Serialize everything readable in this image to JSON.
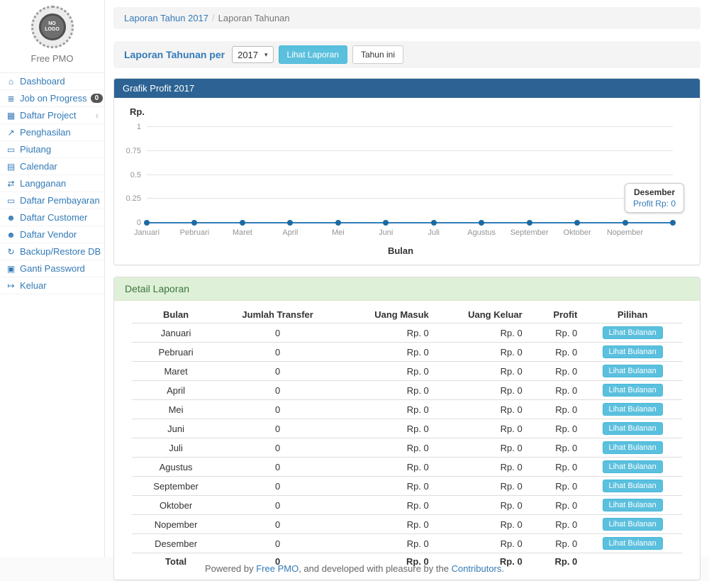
{
  "sidebar": {
    "logo_text": "NO LOGO",
    "brand": "Free PMO",
    "items": [
      {
        "label": "Dashboard",
        "icon": "dashboard-icon",
        "glyph": "⌂"
      },
      {
        "label": "Job on Progress",
        "icon": "tasks-icon",
        "glyph": "≣",
        "badge": "0"
      },
      {
        "label": "Daftar Project",
        "icon": "table-icon",
        "glyph": "▦",
        "chevron": "‹"
      },
      {
        "label": "Penghasilan",
        "icon": "chart-icon",
        "glyph": "↗"
      },
      {
        "label": "Piutang",
        "icon": "credit-card-icon",
        "glyph": "▭"
      },
      {
        "label": "Calendar",
        "icon": "calendar-icon",
        "glyph": "▤"
      },
      {
        "label": "Langganan",
        "icon": "repeat-icon",
        "glyph": "⇄"
      },
      {
        "label": "Daftar Pembayaran",
        "icon": "payment-icon",
        "glyph": "▭"
      },
      {
        "label": "Daftar Customer",
        "icon": "users-icon",
        "glyph": "☻"
      },
      {
        "label": "Daftar Vendor",
        "icon": "users-icon",
        "glyph": "☻"
      },
      {
        "label": "Backup/Restore DB",
        "icon": "refresh-icon",
        "glyph": "↻"
      },
      {
        "label": "Ganti Password",
        "icon": "lock-icon",
        "glyph": "▣"
      },
      {
        "label": "Keluar",
        "icon": "sign-out-icon",
        "glyph": "↦"
      }
    ]
  },
  "breadcrumb": {
    "link": "Laporan Tahun 2017",
    "separator": "/",
    "current": "Laporan Tahunan"
  },
  "report_form": {
    "label": "Laporan Tahunan per",
    "year_value": "2017",
    "caret_glyph": "▾",
    "submit_label": "Lihat Laporan",
    "this_year_label": "Tahun ini"
  },
  "chart_panel": {
    "title": "Grafik Profit 2017",
    "y_axis_label": "Rp.",
    "x_axis_label": "Bulan",
    "tooltip": {
      "title": "Desember",
      "value": "Profit Rp: 0"
    }
  },
  "chart_data": {
    "type": "line",
    "title": "Grafik Profit 2017",
    "x": [
      "Januari",
      "Pebruari",
      "Maret",
      "April",
      "Mei",
      "Juni",
      "Juli",
      "Agustus",
      "September",
      "Oktober",
      "Nopember",
      "Desember"
    ],
    "series": [
      {
        "name": "Profit",
        "values": [
          0,
          0,
          0,
          0,
          0,
          0,
          0,
          0,
          0,
          0,
          0,
          0
        ]
      }
    ],
    "xlabel": "Bulan",
    "ylabel": "Rp.",
    "ylim": [
      0,
      1
    ],
    "yticks": [
      0,
      0.25,
      0.5,
      0.75,
      1
    ],
    "grid": true,
    "legend": "none",
    "line_color": "#2e7cb8",
    "point_color": "#1c6aa3"
  },
  "detail_panel": {
    "title": "Detail Laporan",
    "table": {
      "headers": [
        "Bulan",
        "Jumlah Transfer",
        "Uang Masuk",
        "Uang Keluar",
        "Profit",
        "Pilihan"
      ],
      "action_label": "Lihat Bulanan",
      "rows": [
        [
          "Januari",
          "0",
          "Rp. 0",
          "Rp. 0",
          "Rp. 0"
        ],
        [
          "Pebruari",
          "0",
          "Rp. 0",
          "Rp. 0",
          "Rp. 0"
        ],
        [
          "Maret",
          "0",
          "Rp. 0",
          "Rp. 0",
          "Rp. 0"
        ],
        [
          "April",
          "0",
          "Rp. 0",
          "Rp. 0",
          "Rp. 0"
        ],
        [
          "Mei",
          "0",
          "Rp. 0",
          "Rp. 0",
          "Rp. 0"
        ],
        [
          "Juni",
          "0",
          "Rp. 0",
          "Rp. 0",
          "Rp. 0"
        ],
        [
          "Juli",
          "0",
          "Rp. 0",
          "Rp. 0",
          "Rp. 0"
        ],
        [
          "Agustus",
          "0",
          "Rp. 0",
          "Rp. 0",
          "Rp. 0"
        ],
        [
          "September",
          "0",
          "Rp. 0",
          "Rp. 0",
          "Rp. 0"
        ],
        [
          "Oktober",
          "0",
          "Rp. 0",
          "Rp. 0",
          "Rp. 0"
        ],
        [
          "Nopember",
          "0",
          "Rp. 0",
          "Rp. 0",
          "Rp. 0"
        ],
        [
          "Desember",
          "0",
          "Rp. 0",
          "Rp. 0",
          "Rp. 0"
        ]
      ],
      "total": [
        "Total",
        "0",
        "Rp. 0",
        "Rp. 0",
        "Rp. 0"
      ]
    }
  },
  "footer": {
    "prefix": "Powered by ",
    "link1": "Free PMO",
    "middle": ", and developed with pleasure by the ",
    "link2": "Contributors",
    "suffix": "."
  }
}
